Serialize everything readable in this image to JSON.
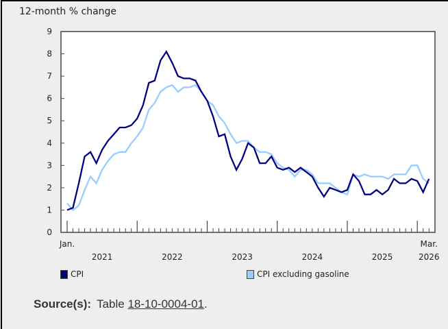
{
  "chart_data": {
    "type": "line",
    "ylabel": "12-month % change",
    "ylim": [
      0,
      9
    ],
    "yticks": [
      "0",
      "1",
      "2",
      "3",
      "4",
      "5",
      "6",
      "7",
      "8",
      "9"
    ],
    "x_start": "2021-01",
    "x_end": "2026-03",
    "xtick_labels": {
      "start": "Jan.",
      "end_month": "Mar.",
      "years": [
        "2021",
        "2022",
        "2023",
        "2024",
        "2025",
        "2026"
      ]
    },
    "grid": false,
    "legend_position": "bottom",
    "series": [
      {
        "name": "CPI",
        "color": "#000080",
        "values": [
          1.0,
          1.1,
          2.2,
          3.4,
          3.6,
          3.1,
          3.7,
          4.1,
          4.4,
          4.7,
          4.7,
          4.8,
          5.1,
          5.7,
          6.7,
          6.8,
          7.7,
          8.1,
          7.6,
          7.0,
          6.9,
          6.9,
          6.8,
          6.3,
          5.9,
          5.2,
          4.3,
          4.4,
          3.4,
          2.8,
          3.3,
          4.0,
          3.8,
          3.1,
          3.1,
          3.4,
          2.9,
          2.8,
          2.9,
          2.7,
          2.9,
          2.7,
          2.5,
          2.0,
          1.6,
          2.0,
          1.9,
          1.8,
          1.9,
          2.6,
          2.3,
          1.7,
          1.7,
          1.9,
          1.7,
          1.9,
          2.4,
          2.2,
          2.2,
          2.4,
          2.3,
          1.8,
          2.4
        ]
      },
      {
        "name": "CPI excluding gasoline",
        "color": "#99ccff",
        "values": [
          1.3,
          1.0,
          1.2,
          1.9,
          2.5,
          2.2,
          2.8,
          3.2,
          3.5,
          3.6,
          3.6,
          4.0,
          4.3,
          4.7,
          5.5,
          5.8,
          6.3,
          6.5,
          6.6,
          6.3,
          6.5,
          6.5,
          6.6,
          6.3,
          5.9,
          5.7,
          5.2,
          4.9,
          4.4,
          4.0,
          4.1,
          4.1,
          3.8,
          3.6,
          3.6,
          3.5,
          3.1,
          2.9,
          2.8,
          2.5,
          2.8,
          2.8,
          2.6,
          2.2,
          2.2,
          2.2,
          2.0,
          1.8,
          1.7,
          2.6,
          2.5,
          2.6,
          2.5,
          2.5,
          2.5,
          2.4,
          2.6,
          2.6,
          2.6,
          3.0,
          3.0,
          2.4,
          2.2
        ]
      }
    ]
  },
  "source": {
    "label": "Source(s):",
    "prefix": "Table",
    "link": "18-10-0004-01",
    "suffix": "."
  }
}
